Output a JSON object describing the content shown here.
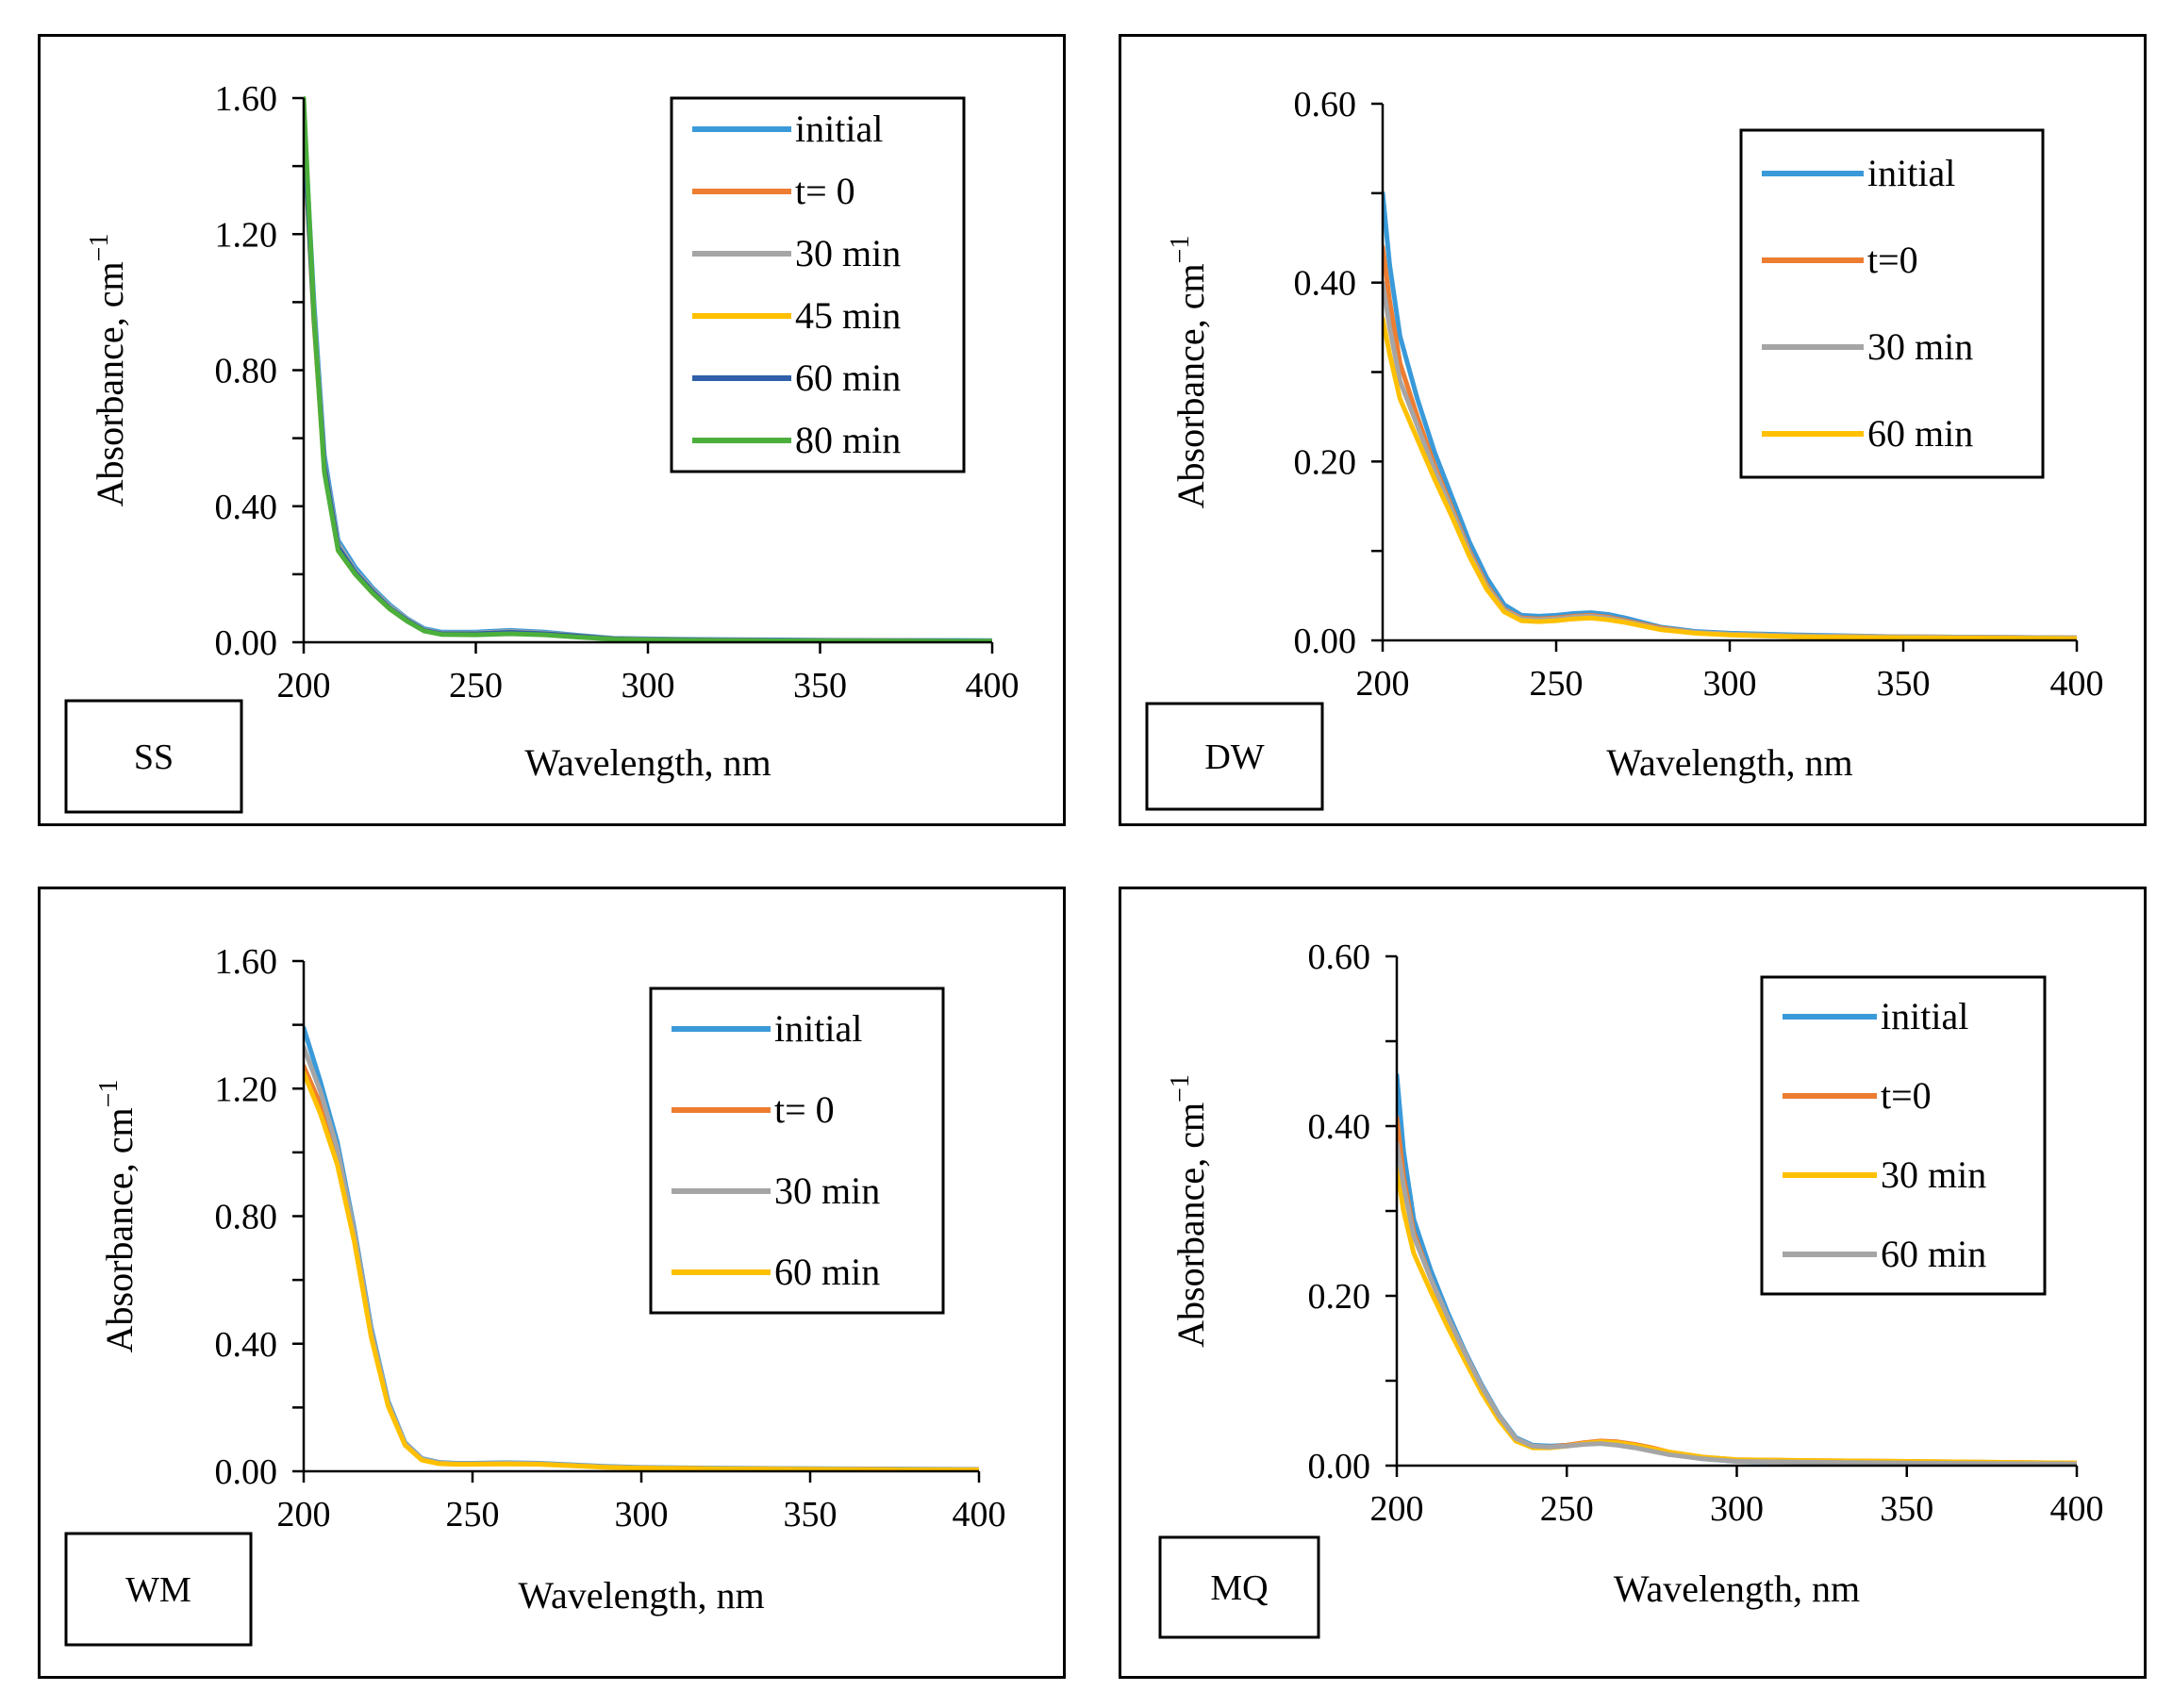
{
  "chart_data": [
    {
      "type": "line",
      "panel_label": "SS",
      "xlabel": "Wavelength, nm",
      "ylabel": "Absorbance, cm",
      "ylabel_sup": "−1",
      "xlim": [
        200,
        400
      ],
      "ylim": [
        0,
        1.6
      ],
      "xticks": [
        200,
        250,
        300,
        350,
        400
      ],
      "yticks": [
        0,
        0.4,
        0.8,
        1.2,
        1.6
      ],
      "yticklabels": [
        "0.00",
        "0.40",
        "0.80",
        "1.20",
        "1.60"
      ],
      "xticklabels": [
        "200",
        "250",
        "300",
        "350",
        "400"
      ],
      "legend_position": "top-right",
      "series": [
        {
          "name": "initial",
          "color": "#3A9AD9",
          "x": [
            200,
            203,
            206,
            210,
            215,
            220,
            225,
            230,
            235,
            240,
            250,
            260,
            270,
            280,
            290,
            300,
            320,
            350,
            400
          ],
          "y": [
            1.55,
            1.0,
            0.55,
            0.3,
            0.22,
            0.16,
            0.11,
            0.07,
            0.04,
            0.03,
            0.03,
            0.035,
            0.03,
            0.02,
            0.012,
            0.01,
            0.008,
            0.006,
            0.005
          ]
        },
        {
          "name": "t= 0",
          "color": "#ED7D31",
          "x": [
            200,
            203,
            206,
            210,
            215,
            220,
            225,
            230,
            235,
            240,
            250,
            260,
            270,
            280,
            290,
            300,
            320,
            350,
            400
          ],
          "y": [
            1.5,
            0.95,
            0.52,
            0.28,
            0.2,
            0.15,
            0.1,
            0.065,
            0.035,
            0.025,
            0.025,
            0.03,
            0.025,
            0.018,
            0.01,
            0.008,
            0.006,
            0.005,
            0.004
          ]
        },
        {
          "name": "30 min",
          "color": "#A5A5A5",
          "x": [
            200,
            203,
            206,
            210,
            215,
            220,
            225,
            230,
            235,
            240,
            250,
            260,
            270,
            280,
            290,
            300,
            320,
            350,
            400
          ],
          "y": [
            1.52,
            0.97,
            0.53,
            0.29,
            0.21,
            0.155,
            0.105,
            0.068,
            0.037,
            0.027,
            0.027,
            0.032,
            0.027,
            0.019,
            0.011,
            0.009,
            0.007,
            0.005,
            0.004
          ]
        },
        {
          "name": "45 min",
          "color": "#FFC000",
          "x": [
            200,
            203,
            206,
            210,
            215,
            220,
            225,
            230,
            235,
            240,
            250,
            260,
            270,
            280,
            290,
            300,
            320,
            350,
            400
          ],
          "y": [
            1.5,
            0.94,
            0.51,
            0.27,
            0.2,
            0.145,
            0.098,
            0.063,
            0.034,
            0.024,
            0.024,
            0.028,
            0.024,
            0.017,
            0.01,
            0.008,
            0.006,
            0.005,
            0.004
          ]
        },
        {
          "name": "60 min",
          "color": "#2E5FA8",
          "x": [
            200,
            203,
            206,
            210,
            215,
            220,
            225,
            230,
            235,
            240,
            250,
            260,
            270,
            280,
            290,
            300,
            320,
            350,
            400
          ],
          "y": [
            1.51,
            0.95,
            0.52,
            0.28,
            0.205,
            0.15,
            0.1,
            0.065,
            0.035,
            0.025,
            0.025,
            0.029,
            0.025,
            0.018,
            0.01,
            0.008,
            0.006,
            0.005,
            0.004
          ]
        },
        {
          "name": "80 min",
          "color": "#4CAF3C",
          "x": [
            200,
            203,
            206,
            210,
            215,
            220,
            225,
            230,
            235,
            240,
            250,
            260,
            270,
            280,
            290,
            300,
            320,
            350,
            400
          ],
          "y": [
            1.6,
            0.96,
            0.5,
            0.27,
            0.2,
            0.145,
            0.098,
            0.062,
            0.033,
            0.023,
            0.022,
            0.025,
            0.022,
            0.015,
            0.009,
            0.007,
            0.005,
            0.004,
            0.003
          ]
        }
      ]
    },
    {
      "type": "line",
      "panel_label": "DW",
      "xlabel": "Wavelength, nm",
      "ylabel": "Absorbance, cm",
      "ylabel_sup": "−1",
      "xlim": [
        200,
        400
      ],
      "ylim": [
        0,
        0.6
      ],
      "xticks": [
        200,
        250,
        300,
        350,
        400
      ],
      "yticks": [
        0,
        0.2,
        0.4,
        0.6
      ],
      "yticklabels": [
        "0.00",
        "0.20",
        "0.40",
        "0.60"
      ],
      "xticklabels": [
        "200",
        "250",
        "300",
        "350",
        "400"
      ],
      "legend_position": "top-right",
      "series": [
        {
          "name": "initial",
          "color": "#3A9AD9",
          "x": [
            200,
            202,
            205,
            210,
            215,
            220,
            225,
            230,
            235,
            240,
            245,
            250,
            255,
            260,
            265,
            270,
            275,
            280,
            290,
            300,
            320,
            350,
            400
          ],
          "y": [
            0.5,
            0.42,
            0.34,
            0.27,
            0.21,
            0.16,
            0.11,
            0.07,
            0.04,
            0.028,
            0.027,
            0.028,
            0.03,
            0.031,
            0.029,
            0.025,
            0.02,
            0.015,
            0.01,
            0.008,
            0.006,
            0.004,
            0.003
          ]
        },
        {
          "name": "t=0",
          "color": "#ED7D31",
          "x": [
            200,
            202,
            205,
            210,
            215,
            220,
            225,
            230,
            235,
            240,
            245,
            250,
            255,
            260,
            265,
            270,
            275,
            280,
            290,
            300,
            320,
            350,
            400
          ],
          "y": [
            0.44,
            0.38,
            0.31,
            0.25,
            0.195,
            0.148,
            0.1,
            0.062,
            0.035,
            0.025,
            0.024,
            0.025,
            0.027,
            0.028,
            0.026,
            0.022,
            0.018,
            0.014,
            0.009,
            0.007,
            0.005,
            0.004,
            0.003
          ]
        },
        {
          "name": "30 min",
          "color": "#A5A5A5",
          "x": [
            200,
            202,
            205,
            210,
            215,
            220,
            225,
            230,
            235,
            240,
            245,
            250,
            255,
            260,
            265,
            270,
            275,
            280,
            290,
            300,
            320,
            350,
            400
          ],
          "y": [
            0.4,
            0.35,
            0.29,
            0.24,
            0.19,
            0.145,
            0.098,
            0.06,
            0.034,
            0.024,
            0.023,
            0.024,
            0.026,
            0.027,
            0.025,
            0.021,
            0.017,
            0.013,
            0.009,
            0.007,
            0.005,
            0.004,
            0.003
          ]
        },
        {
          "name": "60 min",
          "color": "#FFC000",
          "x": [
            200,
            202,
            205,
            210,
            215,
            220,
            225,
            230,
            235,
            240,
            245,
            250,
            255,
            260,
            265,
            270,
            275,
            280,
            290,
            300,
            320,
            350,
            400
          ],
          "y": [
            0.36,
            0.32,
            0.27,
            0.225,
            0.18,
            0.138,
            0.094,
            0.057,
            0.032,
            0.022,
            0.021,
            0.022,
            0.024,
            0.025,
            0.023,
            0.02,
            0.016,
            0.012,
            0.008,
            0.006,
            0.004,
            0.003,
            0.002
          ]
        }
      ]
    },
    {
      "type": "line",
      "panel_label": "WM",
      "xlabel": "Wavelength, nm",
      "ylabel": "Absorbance, cm",
      "ylabel_sup": "−1",
      "xlim": [
        200,
        400
      ],
      "ylim": [
        0,
        1.6
      ],
      "xticks": [
        200,
        250,
        300,
        350,
        400
      ],
      "yticks": [
        0,
        0.4,
        0.8,
        1.2,
        1.6
      ],
      "yticklabels": [
        "0.00",
        "0.40",
        "0.80",
        "1.20",
        "1.60"
      ],
      "xticklabels": [
        "200",
        "250",
        "300",
        "350",
        "400"
      ],
      "legend_position": "top-right",
      "series": [
        {
          "name": "initial",
          "color": "#3A9AD9",
          "x": [
            200,
            205,
            210,
            215,
            220,
            225,
            230,
            235,
            240,
            245,
            250,
            260,
            270,
            280,
            290,
            300,
            320,
            350,
            400
          ],
          "y": [
            1.39,
            1.22,
            1.03,
            0.76,
            0.45,
            0.22,
            0.09,
            0.04,
            0.028,
            0.025,
            0.025,
            0.027,
            0.025,
            0.02,
            0.015,
            0.012,
            0.01,
            0.008,
            0.006
          ]
        },
        {
          "name": "t= 0",
          "color": "#ED7D31",
          "x": [
            200,
            205,
            210,
            215,
            220,
            225,
            230,
            235,
            240,
            245,
            250,
            260,
            270,
            280,
            290,
            300,
            320,
            350,
            400
          ],
          "y": [
            1.27,
            1.15,
            0.98,
            0.73,
            0.43,
            0.21,
            0.085,
            0.037,
            0.026,
            0.023,
            0.023,
            0.025,
            0.023,
            0.018,
            0.013,
            0.011,
            0.009,
            0.007,
            0.005
          ]
        },
        {
          "name": "30 min",
          "color": "#A5A5A5",
          "x": [
            200,
            205,
            210,
            215,
            220,
            225,
            230,
            235,
            240,
            245,
            250,
            260,
            270,
            280,
            290,
            300,
            320,
            350,
            400
          ],
          "y": [
            1.33,
            1.19,
            1.01,
            0.75,
            0.44,
            0.215,
            0.088,
            0.039,
            0.027,
            0.024,
            0.024,
            0.026,
            0.024,
            0.019,
            0.014,
            0.011,
            0.009,
            0.008,
            0.005
          ]
        },
        {
          "name": "60 min",
          "color": "#FFC000",
          "x": [
            200,
            205,
            210,
            215,
            220,
            225,
            230,
            235,
            240,
            245,
            250,
            260,
            270,
            280,
            290,
            300,
            320,
            350,
            400
          ],
          "y": [
            1.25,
            1.12,
            0.96,
            0.72,
            0.42,
            0.205,
            0.082,
            0.035,
            0.024,
            0.022,
            0.022,
            0.023,
            0.022,
            0.017,
            0.012,
            0.01,
            0.008,
            0.006,
            0.004
          ]
        }
      ]
    },
    {
      "type": "line",
      "panel_label": "MQ",
      "xlabel": "Wavelength, nm",
      "ylabel": "Absorbance, cm",
      "ylabel_sup": "−1",
      "xlim": [
        200,
        400
      ],
      "ylim": [
        0,
        0.6
      ],
      "xticks": [
        200,
        250,
        300,
        350,
        400
      ],
      "yticks": [
        0,
        0.2,
        0.4,
        0.6
      ],
      "yticklabels": [
        "0.00",
        "0.20",
        "0.40",
        "0.60"
      ],
      "xticklabels": [
        "200",
        "250",
        "300",
        "350",
        "400"
      ],
      "legend_position": "top-right",
      "series": [
        {
          "name": "initial",
          "color": "#3A9AD9",
          "x": [
            200,
            202,
            205,
            210,
            215,
            220,
            225,
            230,
            235,
            240,
            245,
            250,
            255,
            260,
            265,
            270,
            275,
            280,
            290,
            300,
            320,
            350,
            400
          ],
          "y": [
            0.46,
            0.37,
            0.29,
            0.23,
            0.18,
            0.135,
            0.095,
            0.06,
            0.033,
            0.024,
            0.023,
            0.024,
            0.026,
            0.027,
            0.025,
            0.022,
            0.018,
            0.014,
            0.008,
            0.005,
            0.004,
            0.003,
            0.002
          ]
        },
        {
          "name": "t=0",
          "color": "#ED7D31",
          "x": [
            200,
            202,
            205,
            210,
            215,
            220,
            225,
            230,
            235,
            240,
            245,
            250,
            255,
            260,
            265,
            270,
            275,
            280,
            290,
            300,
            320,
            350,
            400
          ],
          "y": [
            0.41,
            0.34,
            0.275,
            0.22,
            0.172,
            0.13,
            0.09,
            0.057,
            0.031,
            0.022,
            0.022,
            0.024,
            0.027,
            0.029,
            0.028,
            0.025,
            0.021,
            0.016,
            0.01,
            0.007,
            0.006,
            0.005,
            0.003
          ]
        },
        {
          "name": "30 min",
          "color": "#FFC000",
          "x": [
            200,
            202,
            205,
            210,
            215,
            220,
            225,
            230,
            235,
            240,
            245,
            250,
            255,
            260,
            265,
            270,
            275,
            280,
            290,
            300,
            320,
            350,
            400
          ],
          "y": [
            0.35,
            0.3,
            0.25,
            0.205,
            0.163,
            0.124,
            0.086,
            0.054,
            0.029,
            0.021,
            0.021,
            0.023,
            0.026,
            0.028,
            0.027,
            0.024,
            0.02,
            0.016,
            0.01,
            0.007,
            0.006,
            0.005,
            0.003
          ]
        },
        {
          "name": "60 min",
          "color": "#A5A5A5",
          "x": [
            200,
            202,
            205,
            210,
            215,
            220,
            225,
            230,
            235,
            240,
            245,
            250,
            255,
            260,
            265,
            270,
            275,
            280,
            290,
            300,
            320,
            350,
            400
          ],
          "y": [
            0.38,
            0.33,
            0.27,
            0.22,
            0.175,
            0.133,
            0.093,
            0.059,
            0.032,
            0.023,
            0.022,
            0.023,
            0.025,
            0.026,
            0.024,
            0.021,
            0.017,
            0.013,
            0.008,
            0.005,
            0.004,
            0.003,
            0.002
          ]
        }
      ]
    }
  ]
}
